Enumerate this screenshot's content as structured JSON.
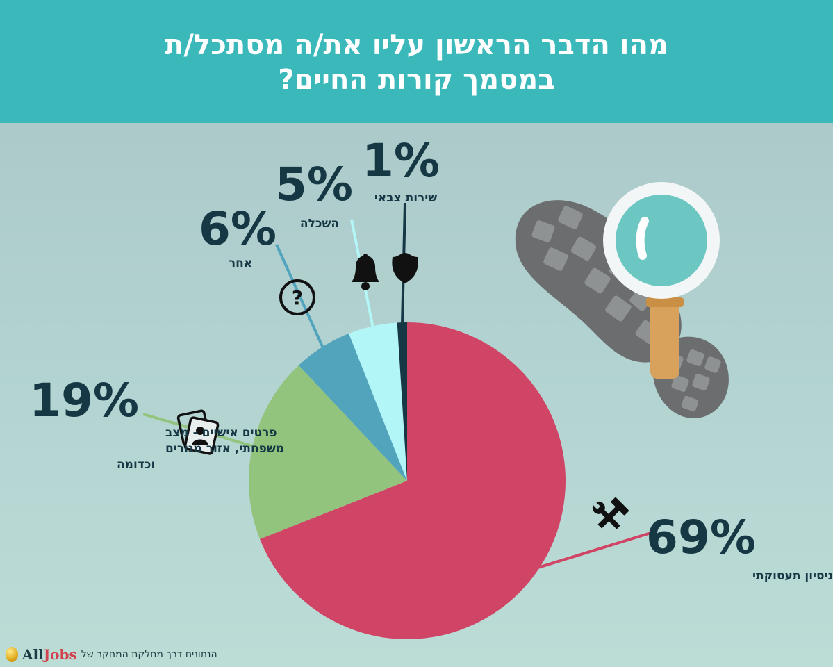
{
  "title": {
    "line1": "מהו הדבר הראשון עליו את/ה מסתכל/ת",
    "line2": "במסמך קורות החיים?"
  },
  "colors": {
    "header_bg": "#3bb8ba",
    "work": "#d04565",
    "personal": "#93c47d",
    "other": "#52a4bd",
    "education": "#b3f6f8",
    "army": "#163845",
    "text": "#163845"
  },
  "chart_data": {
    "type": "pie",
    "title": "מהו הדבר הראשון עליו את/ה מסתכל/ת במסמך קורות החיים?",
    "slices": [
      {
        "label": "ניסיון תעסוקתי",
        "value": 69,
        "display": "69%",
        "color": "#d04565",
        "icon": "hammer-wrench-icon"
      },
      {
        "label": "פרטים אישיים - מצב משפחתי, אזור מגורים וכדומה",
        "label_lines": [
          "פרטים אישיים - מצב",
          "משפחתי, אזור מגורים",
          "וכדומה"
        ],
        "value": 19,
        "display": "19%",
        "color": "#93c47d",
        "icon": "id-card-icon"
      },
      {
        "label": "אחר",
        "value": 6,
        "display": "6%",
        "color": "#52a4bd",
        "icon": "question-icon"
      },
      {
        "label": "השכלה",
        "value": 5,
        "display": "5%",
        "color": "#b3f6f8",
        "icon": "bell-icon"
      },
      {
        "label": "שירות צבאי",
        "value": 1,
        "display": "1%",
        "color": "#163845",
        "icon": "badge-icon"
      }
    ]
  },
  "footer": {
    "text": "הנתונים דרך מחלקת המחקר של",
    "logo_all": "All",
    "logo_jobs": "Jobs"
  }
}
